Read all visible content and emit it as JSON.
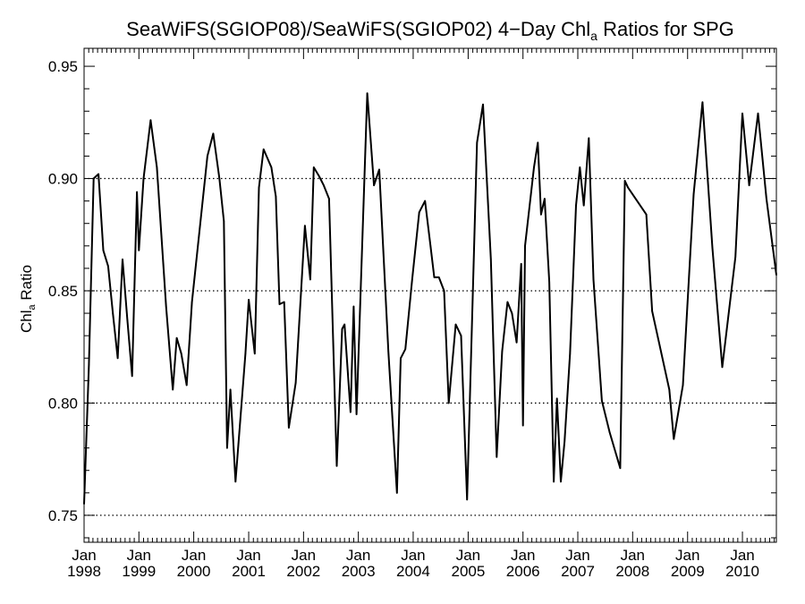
{
  "chart_data": {
    "type": "line",
    "title": {
      "prefix": "SeaWiFS(SGIOP08)/SeaWiFS(SGIOP02) 4−Day Chl",
      "subscript": "a",
      "suffix": " Ratios for SPG"
    },
    "ylabel": {
      "text": "Chl",
      "subscript": "a",
      "suffix": " Ratio"
    },
    "ylim": [
      0.738,
      0.958
    ],
    "yticks": [
      {
        "value": 0.75,
        "label": "0.75"
      },
      {
        "value": 0.8,
        "label": "0.80"
      },
      {
        "value": 0.85,
        "label": "0.85"
      },
      {
        "value": 0.9,
        "label": "0.90"
      },
      {
        "value": 0.95,
        "label": "0.95"
      }
    ],
    "y_minor_step": 0.01,
    "y_gridlines": [
      0.75,
      0.8,
      0.85,
      0.9
    ],
    "grid_style": "dotted",
    "xlim": [
      "1998-01-01",
      "2010-08-15"
    ],
    "xticks": [
      {
        "date": "1998-01-01",
        "month": "Jan",
        "year": "1998"
      },
      {
        "date": "1999-01-01",
        "month": "Jan",
        "year": "1999"
      },
      {
        "date": "2000-01-01",
        "month": "Jan",
        "year": "2000"
      },
      {
        "date": "2001-01-01",
        "month": "Jan",
        "year": "2001"
      },
      {
        "date": "2002-01-01",
        "month": "Jan",
        "year": "2002"
      },
      {
        "date": "2003-01-01",
        "month": "Jan",
        "year": "2003"
      },
      {
        "date": "2004-01-01",
        "month": "Jan",
        "year": "2004"
      },
      {
        "date": "2005-01-01",
        "month": "Jan",
        "year": "2005"
      },
      {
        "date": "2006-01-01",
        "month": "Jan",
        "year": "2006"
      },
      {
        "date": "2007-01-01",
        "month": "Jan",
        "year": "2007"
      },
      {
        "date": "2008-01-01",
        "month": "Jan",
        "year": "2008"
      },
      {
        "date": "2009-01-01",
        "month": "Jan",
        "year": "2009"
      },
      {
        "date": "2010-01-01",
        "month": "Jan",
        "year": "2010"
      }
    ],
    "line_color": "#000000",
    "series": [
      {
        "x": [
          "1998-01-01",
          "1998-02-02",
          "1998-03-06",
          "1998-04-07",
          "1998-05-09",
          "1998-06-10",
          "1998-07-12",
          "1998-08-13",
          "1998-09-14",
          "1998-10-16",
          "1998-11-17",
          "1998-12-19",
          "1999-01-01",
          "1999-02-01",
          "1999-03-20",
          "1999-05-01",
          "1999-07-01",
          "1999-08-15",
          "1999-09-10",
          "1999-10-10",
          "1999-11-15",
          "1999-12-20",
          "2000-04-01",
          "2000-05-10",
          "2000-06-20",
          "2000-07-20",
          "2000-08-10",
          "2000-09-01",
          "2000-10-05",
          "2000-12-10",
          "2001-01-01",
          "2001-02-10",
          "2001-03-10",
          "2001-04-10",
          "2001-06-01",
          "2001-07-01",
          "2001-07-25",
          "2001-08-25",
          "2001-09-25",
          "2001-11-10",
          "2002-01-10",
          "2002-02-15",
          "2002-03-10",
          "2002-04-15",
          "2002-05-15",
          "2002-06-20",
          "2002-08-10",
          "2002-09-15",
          "2002-10-01",
          "2002-11-10",
          "2002-12-01",
          "2002-12-20",
          "2003-03-01",
          "2003-04-15",
          "2003-05-20",
          "2003-07-20",
          "2003-09-15",
          "2003-10-10",
          "2003-11-10",
          "2003-12-25",
          "2004-02-10",
          "2004-03-20",
          "2004-04-25",
          "2004-05-20",
          "2004-06-20",
          "2004-07-25",
          "2004-08-25",
          "2004-10-10",
          "2004-11-15",
          "2004-12-25",
          "2005-03-01",
          "2005-04-10",
          "2005-06-01",
          "2005-07-10",
          "2005-08-15",
          "2005-09-20",
          "2005-10-20",
          "2005-11-20",
          "2005-12-20",
          "2006-01-01",
          "2006-01-15",
          "2006-03-15",
          "2006-04-10",
          "2006-05-01",
          "2006-05-25",
          "2006-06-25",
          "2006-07-25",
          "2006-08-15",
          "2006-09-10",
          "2006-10-05",
          "2006-11-10",
          "2006-12-20",
          "2007-01-15",
          "2007-02-10",
          "2007-03-15",
          "2007-04-15",
          "2007-06-10",
          "2007-08-01",
          "2007-10-10",
          "2007-11-10",
          "2007-12-01",
          "2008-04-01",
          "2008-05-10",
          "2008-09-01",
          "2008-10-01",
          "2008-12-01",
          "2009-02-10",
          "2009-04-10",
          "2009-06-15",
          "2009-08-20",
          "2009-11-15",
          "2010-01-01",
          "2010-02-15",
          "2010-04-15",
          "2010-06-10",
          "2010-08-15"
        ],
        "y": [
          0.755,
          0.817,
          0.9,
          0.902,
          0.868,
          0.861,
          0.84,
          0.82,
          0.864,
          0.837,
          0.812,
          0.894,
          0.868,
          0.9,
          0.926,
          0.905,
          0.843,
          0.806,
          0.829,
          0.822,
          0.808,
          0.845,
          0.91,
          0.92,
          0.9,
          0.881,
          0.78,
          0.806,
          0.765,
          0.822,
          0.846,
          0.822,
          0.896,
          0.913,
          0.905,
          0.892,
          0.844,
          0.845,
          0.789,
          0.809,
          0.879,
          0.855,
          0.905,
          0.901,
          0.897,
          0.891,
          0.772,
          0.833,
          0.835,
          0.796,
          0.843,
          0.795,
          0.938,
          0.897,
          0.904,
          0.823,
          0.76,
          0.82,
          0.824,
          0.855,
          0.885,
          0.89,
          0.87,
          0.856,
          0.856,
          0.85,
          0.8,
          0.835,
          0.83,
          0.757,
          0.916,
          0.933,
          0.864,
          0.776,
          0.823,
          0.845,
          0.84,
          0.827,
          0.862,
          0.79,
          0.87,
          0.905,
          0.916,
          0.884,
          0.891,
          0.854,
          0.765,
          0.802,
          0.765,
          0.783,
          0.822,
          0.888,
          0.905,
          0.888,
          0.918,
          0.855,
          0.801,
          0.787,
          0.771,
          0.899,
          0.896,
          0.884,
          0.841,
          0.806,
          0.784,
          0.808,
          0.893,
          0.934,
          0.869,
          0.816,
          0.865,
          0.929,
          0.897,
          0.929,
          0.891,
          0.857
        ]
      }
    ]
  }
}
